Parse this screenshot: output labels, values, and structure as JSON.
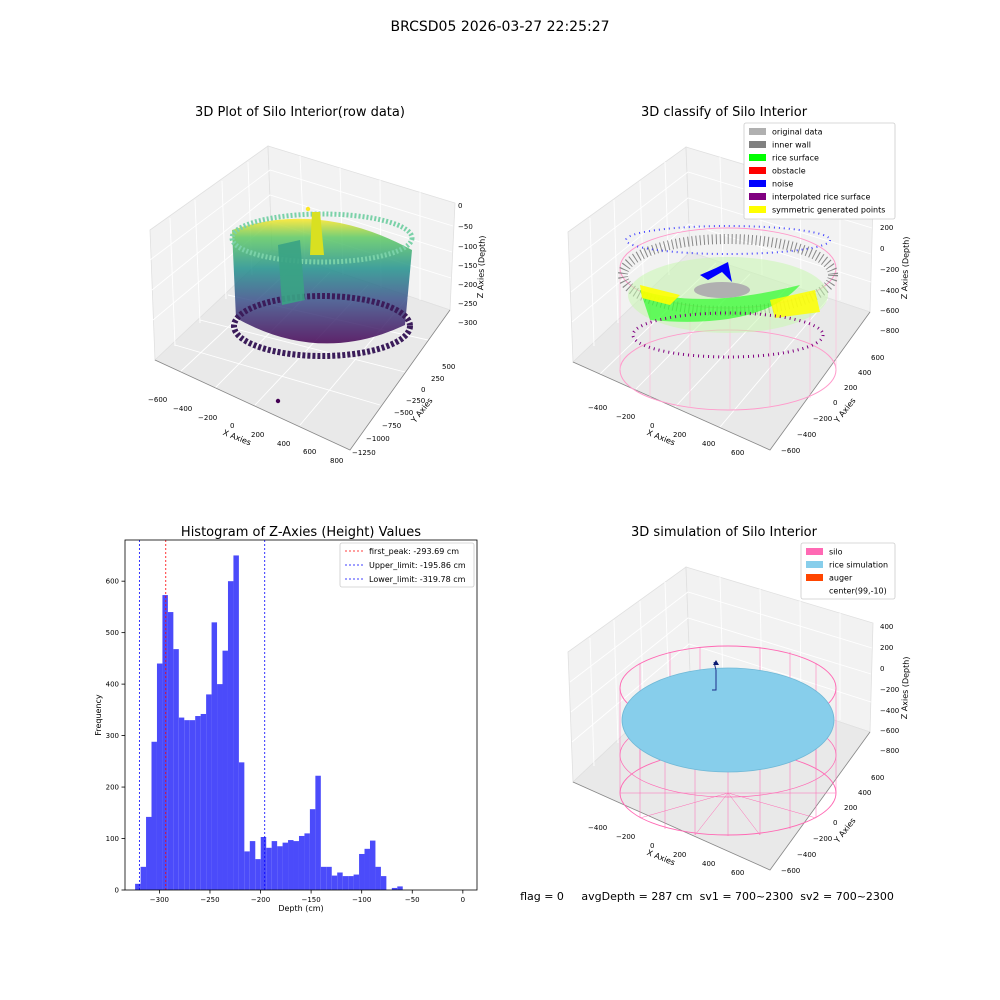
{
  "figure_title": "BRCSD05 2026-03-27 22:25:27",
  "colors": {
    "hist_bar": "#4b4bfa",
    "first_peak": "#ff0000",
    "limits": "#0000ff",
    "silo": "#ff69b4",
    "rice_simulation": "#87ceeb",
    "auger": "#ff4500",
    "original_data": "#b0b0b0",
    "inner_wall": "#808080",
    "rice_surface": "#00ff00",
    "obstacle": "#ff0000",
    "noise": "#0000ff",
    "interpolated_rice_surface": "#800080",
    "symmetric_generated_points": "#ffff00"
  },
  "panels": {
    "raw": {
      "title": "3D Plot of Silo Interior(row data)",
      "xlabel": "X Axies",
      "ylabel": "Y Axies",
      "zlabel": "Z Axies (Depth)",
      "xticks": [
        "−600",
        "−400",
        "−200",
        "0",
        "200",
        "400",
        "600",
        "800"
      ],
      "yticks": [
        "500",
        "250",
        "0",
        "−250",
        "−500",
        "−750",
        "−1000",
        "−1250"
      ],
      "zticks": [
        "0",
        "−50",
        "−100",
        "−150",
        "−200",
        "−250",
        "−300"
      ]
    },
    "classify": {
      "title": "3D classify of Silo Interior",
      "xlabel": "X Axies",
      "ylabel": "Y Axies",
      "zlabel": "Z Axies (Depth)",
      "xticks": [
        "−400",
        "−200",
        "0",
        "200",
        "400",
        "600"
      ],
      "yticks": [
        "600",
        "400",
        "200",
        "0",
        "−200",
        "−400",
        "−600"
      ],
      "zticks": [
        "200",
        "0",
        "−200",
        "−400",
        "−600",
        "−800"
      ],
      "legend": [
        {
          "label": "original data",
          "color_key": "original_data"
        },
        {
          "label": "inner wall",
          "color_key": "inner_wall"
        },
        {
          "label": "rice surface",
          "color_key": "rice_surface"
        },
        {
          "label": "obstacle",
          "color_key": "obstacle"
        },
        {
          "label": "noise",
          "color_key": "noise"
        },
        {
          "label": "interpolated rice surface",
          "color_key": "interpolated_rice_surface"
        },
        {
          "label": "symmetric generated points",
          "color_key": "symmetric_generated_points"
        }
      ]
    },
    "simulation": {
      "title": "3D simulation of Silo Interior",
      "xlabel": "X Axies",
      "ylabel": "Y Axies",
      "zlabel": "Z Axies (Depth)",
      "xticks": [
        "−400",
        "−200",
        "0",
        "200",
        "400",
        "600"
      ],
      "yticks": [
        "600",
        "400",
        "200",
        "0",
        "−200",
        "−400",
        "−600"
      ],
      "zticks": [
        "400",
        "200",
        "0",
        "−200",
        "−400",
        "−600",
        "−800"
      ],
      "legend": [
        {
          "label": "silo",
          "color_key": "silo"
        },
        {
          "label": "rice simulation",
          "color_key": "rice_simulation"
        },
        {
          "label": "auger",
          "color_key": "auger"
        },
        {
          "label": "center(99,-10)",
          "color_key": ""
        }
      ]
    }
  },
  "status_line": "flag = 0     avgDepth = 287 cm  sv1 = 700~2300  sv2 = 700~2300",
  "chart_data": {
    "type": "bar",
    "title": "Histogram of Z-Axies (Height) Values",
    "xlabel": "Depth (cm)",
    "ylabel": "Frequency",
    "xlim": [
      -334,
      14
    ],
    "ylim": [
      0,
      680
    ],
    "xticks": [
      -300,
      -250,
      -200,
      -150,
      -100,
      -50,
      0
    ],
    "xtick_labels": [
      "−300",
      "−250",
      "−200",
      "−150",
      "−100",
      "−50",
      "0"
    ],
    "yticks": [
      0,
      100,
      200,
      300,
      400,
      500,
      600
    ],
    "yticks_labels": [
      "0",
      "100",
      "200",
      "300",
      "400",
      "500",
      "600"
    ],
    "bin_start": -324,
    "bin_width": 5.4,
    "values": [
      12,
      45,
      142,
      288,
      440,
      573,
      540,
      468,
      335,
      330,
      330,
      338,
      342,
      380,
      520,
      400,
      465,
      600,
      650,
      248,
      75,
      95,
      60,
      103,
      82,
      95,
      85,
      92,
      97,
      95,
      105,
      110,
      157,
      222,
      45,
      45,
      28,
      34,
      27,
      27,
      30,
      70,
      80,
      96,
      45,
      27,
      0,
      4,
      7
    ],
    "vlines": [
      {
        "x": -293.69,
        "label": "first_peak: -293.69 cm",
        "color_key": "first_peak"
      },
      {
        "x": -195.86,
        "label": "Upper_limit: -195.86 cm",
        "color_key": "limits"
      },
      {
        "x": -319.78,
        "label": "Lower_limit: -319.78 cm",
        "color_key": "limits"
      }
    ],
    "legend_position": "top-right"
  }
}
